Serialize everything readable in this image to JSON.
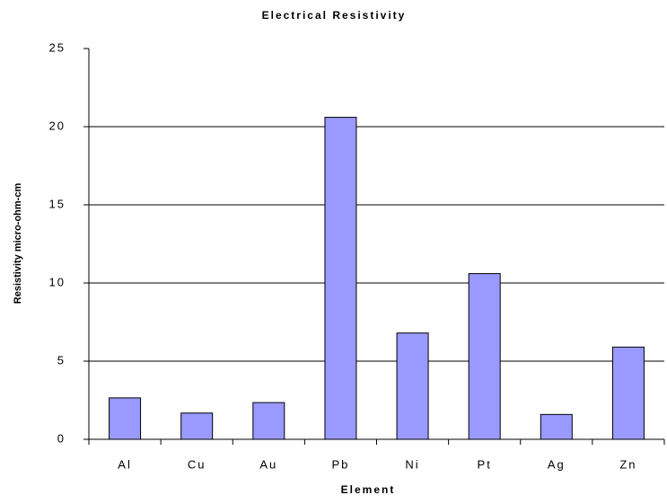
{
  "chart_data": {
    "type": "bar",
    "title": "Electrical Resistivity",
    "x_label": "Element",
    "y_label": "Resistivity micro-ohm-cm",
    "categories": [
      "Al",
      "Cu",
      "Au",
      "Pb",
      "Ni",
      "Pt",
      "Ag",
      "Zn"
    ],
    "values": [
      2.65,
      1.68,
      2.35,
      20.6,
      6.8,
      10.6,
      1.59,
      5.9
    ],
    "color": "#9999ff",
    "ylim": [
      0,
      25
    ],
    "yticks": [
      0,
      5,
      10,
      15,
      20,
      25
    ],
    "grid": true
  }
}
